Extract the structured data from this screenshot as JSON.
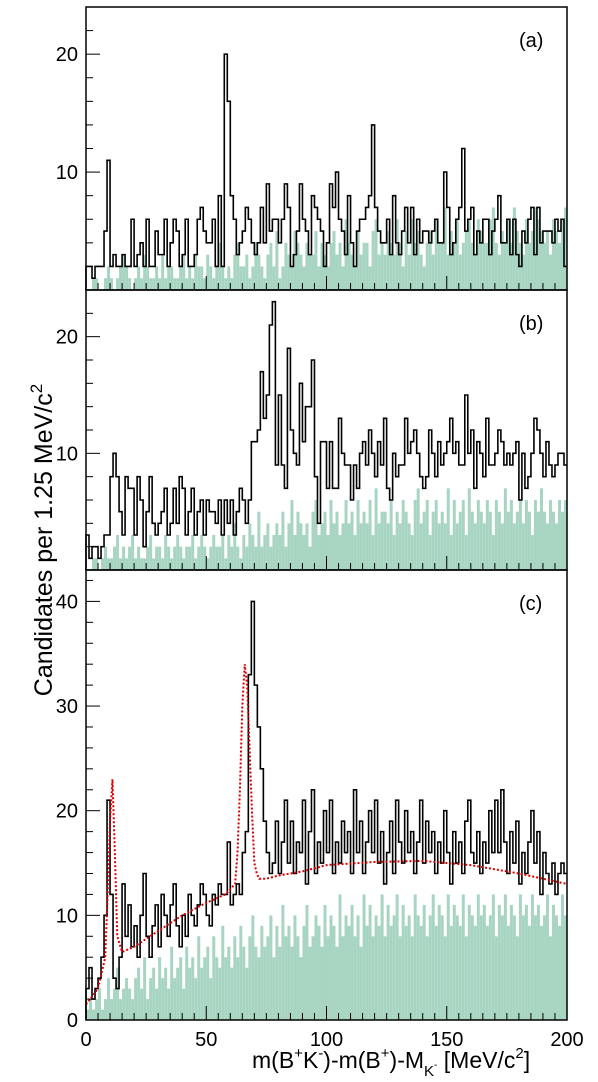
{
  "figure": {
    "ylabel": "Candidates per 1.25 MeV/c",
    "ylabel_sup": "2",
    "xlabel": "m(B",
    "xlabel_parts": [
      "m(B",
      "+",
      "K",
      "-",
      ")-m(B",
      "+",
      ")-M",
      "K",
      "-",
      " [MeV/c",
      "2",
      "]"
    ]
  },
  "colors": {
    "fill": "#a8d5c2",
    "line": "#000000",
    "fit": "#dd0000"
  },
  "chart_data": [
    {
      "type": "bar",
      "panel_label": "(a)",
      "xlim": [
        0,
        200
      ],
      "ylim": [
        0,
        24
      ],
      "yticks": [
        10,
        20
      ],
      "bin_width": 1.25,
      "description_series": [
        "data histogram (line)",
        "background histogram (filled)"
      ],
      "series": [
        {
          "values": [
            2,
            2,
            1,
            2,
            2,
            2,
            5,
            11,
            2,
            3,
            2,
            2,
            3,
            2,
            2,
            6,
            2,
            3,
            4,
            2,
            6,
            2,
            2,
            5,
            3,
            3,
            6,
            2,
            4,
            6,
            5,
            2,
            3,
            6,
            2,
            2,
            3,
            6,
            7,
            5,
            4,
            4,
            6,
            2,
            8,
            2,
            20,
            16,
            8,
            6,
            3,
            4,
            5,
            7,
            6,
            4,
            3,
            4,
            7,
            4,
            9,
            5,
            6,
            6,
            4,
            6,
            9,
            7,
            2,
            3,
            5,
            9,
            6,
            5,
            3,
            8,
            7,
            6,
            5,
            2,
            4,
            9,
            7,
            10,
            6,
            5,
            3,
            8,
            4,
            2,
            5,
            6,
            6,
            7,
            8,
            14,
            7,
            5,
            4,
            4,
            6,
            3,
            8,
            4,
            3,
            5,
            7,
            4,
            7,
            3,
            6,
            4,
            5,
            5,
            4,
            5,
            6,
            4,
            4,
            10,
            7,
            3,
            4,
            6,
            7,
            12,
            5,
            6,
            7,
            3,
            5,
            4,
            6,
            6,
            3,
            5,
            6,
            8,
            4,
            4,
            6,
            3,
            6,
            3,
            2,
            5,
            4,
            6,
            7,
            3,
            7,
            4,
            5,
            5,
            5,
            4,
            6,
            5,
            6,
            2
          ]
        },
        {
          "values": [
            0,
            0,
            1,
            1,
            0,
            0,
            1,
            2,
            1,
            0,
            1,
            2,
            3,
            2,
            1,
            0,
            1,
            2,
            1,
            3,
            2,
            1,
            1,
            2,
            1,
            3,
            1,
            2,
            2,
            1,
            1,
            2,
            3,
            1,
            2,
            1,
            3,
            2,
            2,
            1,
            3,
            2,
            1,
            2,
            4,
            2,
            1,
            2,
            1,
            3,
            4,
            2,
            2,
            3,
            1,
            2,
            4,
            3,
            2,
            1,
            3,
            4,
            2,
            5,
            1,
            2,
            4,
            3,
            2,
            5,
            4,
            3,
            2,
            4,
            3,
            3,
            5,
            2,
            4,
            3,
            2,
            4,
            5,
            3,
            4,
            2,
            6,
            4,
            3,
            2,
            5,
            3,
            4,
            4,
            2,
            5,
            6,
            3,
            4,
            3,
            5,
            4,
            3,
            6,
            4,
            2,
            5,
            3,
            6,
            4,
            5,
            3,
            2,
            4,
            5,
            3,
            6,
            4,
            4,
            7,
            3,
            5,
            4,
            6,
            3,
            4,
            5,
            6,
            4,
            3,
            6,
            5,
            4,
            4,
            6,
            7,
            4,
            3,
            5,
            4,
            6,
            4,
            7,
            5,
            4,
            3,
            6,
            4,
            5,
            7,
            6,
            5,
            4,
            5,
            3,
            6,
            5,
            4,
            6,
            7
          ]
        }
      ]
    },
    {
      "type": "bar",
      "panel_label": "(b)",
      "xlim": [
        0,
        200
      ],
      "ylim": [
        0,
        24
      ],
      "yticks": [
        10,
        20
      ],
      "bin_width": 1.25,
      "series": [
        {
          "values": [
            3,
            1,
            2,
            2,
            1,
            2,
            3,
            3,
            8,
            10,
            8,
            5,
            3,
            8,
            7,
            7,
            3,
            8,
            6,
            2,
            5,
            8,
            4,
            3,
            4,
            5,
            7,
            3,
            4,
            7,
            4,
            8,
            7,
            3,
            5,
            7,
            3,
            5,
            6,
            3,
            6,
            5,
            5,
            4,
            6,
            3,
            6,
            4,
            6,
            3,
            5,
            7,
            6,
            4,
            6,
            11,
            11,
            12,
            17,
            13,
            15,
            21,
            23,
            9,
            15,
            9,
            7,
            19,
            12,
            10,
            9,
            16,
            11,
            14,
            14,
            18,
            8,
            4,
            11,
            11,
            7,
            11,
            7,
            7,
            13,
            10,
            9,
            9,
            6,
            9,
            7,
            10,
            11,
            9,
            12,
            10,
            8,
            11,
            9,
            13,
            7,
            6,
            10,
            8,
            9,
            9,
            13,
            10,
            11,
            12,
            10,
            8,
            7,
            8,
            12,
            10,
            8,
            11,
            9,
            10,
            11,
            13,
            10,
            11,
            9,
            9,
            15,
            10,
            12,
            7,
            11,
            10,
            8,
            13,
            9,
            9,
            10,
            12,
            11,
            9,
            10,
            9,
            10,
            11,
            6,
            10,
            7,
            8,
            10,
            13,
            12,
            10,
            8,
            11,
            9,
            8,
            9,
            10,
            10,
            9
          ]
        },
        {
          "values": [
            0,
            0,
            1,
            1,
            0,
            1,
            2,
            1,
            1,
            2,
            3,
            1,
            2,
            1,
            2,
            3,
            1,
            2,
            1,
            1,
            2,
            3,
            1,
            2,
            2,
            1,
            3,
            2,
            1,
            2,
            3,
            2,
            1,
            2,
            2,
            3,
            1,
            2,
            3,
            2,
            1,
            2,
            3,
            2,
            2,
            3,
            1,
            3,
            2,
            4,
            2,
            1,
            3,
            2,
            4,
            3,
            2,
            5,
            2,
            3,
            4,
            2,
            3,
            4,
            3,
            5,
            2,
            4,
            6,
            3,
            5,
            4,
            3,
            4,
            2,
            5,
            6,
            3,
            4,
            5,
            3,
            6,
            4,
            5,
            3,
            4,
            6,
            4,
            5,
            3,
            6,
            4,
            5,
            4,
            6,
            3,
            7,
            4,
            5,
            5,
            4,
            6,
            3,
            5,
            4,
            6,
            5,
            4,
            3,
            6,
            7,
            4,
            5,
            6,
            3,
            5,
            6,
            4,
            5,
            4,
            7,
            3,
            6,
            4,
            5,
            6,
            3,
            7,
            5,
            4,
            6,
            5,
            4,
            6,
            5,
            3,
            6,
            5,
            4,
            7,
            5,
            6,
            4,
            5,
            6,
            4,
            6,
            5,
            3,
            6,
            5,
            7,
            5,
            4,
            6,
            5,
            4,
            6,
            5,
            6
          ]
        }
      ]
    },
    {
      "type": "bar",
      "panel_label": "(c)",
      "xlim": [
        0,
        200
      ],
      "ylim": [
        0,
        43
      ],
      "yticks": [
        0,
        10,
        20,
        30,
        40
      ],
      "xticks": [
        0,
        50,
        100,
        150,
        200
      ],
      "bin_width": 1.25,
      "series": [
        {
          "values": [
            3,
            5,
            2,
            3,
            4,
            6,
            10,
            21,
            12,
            4,
            3,
            6,
            13,
            8,
            11,
            7,
            9,
            6,
            10,
            14,
            8,
            6,
            9,
            11,
            7,
            12,
            10,
            8,
            11,
            13,
            9,
            7,
            10,
            8,
            12,
            10,
            9,
            11,
            13,
            12,
            10,
            9,
            12,
            11,
            13,
            12,
            12,
            17,
            11,
            12,
            13,
            12,
            16,
            18,
            33,
            40,
            32,
            28,
            24,
            19,
            16,
            14,
            15,
            19,
            14,
            17,
            21,
            15,
            19,
            14,
            17,
            16,
            21,
            13,
            18,
            22,
            14,
            17,
            15,
            20,
            16,
            21,
            14,
            17,
            15,
            19,
            16,
            18,
            14,
            22,
            16,
            19,
            14,
            17,
            20,
            16,
            21,
            15,
            18,
            13,
            16,
            19,
            14,
            21,
            17,
            15,
            20,
            16,
            18,
            14,
            17,
            21,
            15,
            19,
            16,
            18,
            14,
            17,
            15,
            20,
            16,
            13,
            18,
            15,
            17,
            14,
            19,
            21,
            16,
            15,
            18,
            14,
            17,
            15,
            20,
            16,
            21,
            16,
            22,
            17,
            14,
            18,
            15,
            19,
            13,
            16,
            14,
            17,
            20,
            15,
            18,
            12,
            16,
            14,
            13,
            15,
            12,
            14,
            15,
            14
          ]
        },
        {
          "values": [
            1,
            2,
            1,
            2,
            3,
            1,
            2,
            4,
            2,
            3,
            5,
            2,
            3,
            4,
            3,
            2,
            4,
            5,
            3,
            6,
            2,
            4,
            5,
            3,
            6,
            4,
            5,
            3,
            7,
            4,
            5,
            6,
            3,
            7,
            5,
            6,
            4,
            8,
            5,
            6,
            7,
            4,
            8,
            6,
            5,
            9,
            6,
            7,
            5,
            8,
            6,
            9,
            7,
            5,
            8,
            10,
            7,
            6,
            9,
            7,
            8,
            10,
            6,
            9,
            7,
            11,
            8,
            9,
            7,
            10,
            8,
            6,
            9,
            11,
            7,
            8,
            10,
            9,
            7,
            11,
            8,
            10,
            9,
            7,
            12,
            8,
            10,
            9,
            11,
            8,
            10,
            7,
            12,
            9,
            11,
            8,
            10,
            9,
            12,
            8,
            11,
            9,
            10,
            12,
            8,
            11,
            9,
            10,
            8,
            12,
            10,
            9,
            11,
            8,
            10,
            12,
            9,
            11,
            10,
            8,
            12,
            9,
            11,
            10,
            9,
            12,
            8,
            11,
            10,
            9,
            12,
            10,
            11,
            9,
            10,
            12,
            8,
            11,
            10,
            12,
            9,
            11,
            10,
            8,
            12,
            10,
            11,
            9,
            12,
            10,
            11,
            9,
            10,
            12,
            8,
            11,
            10,
            9,
            12,
            10
          ]
        },
        {
          "name": "fit",
          "type": "line",
          "x": [
            0,
            5,
            8,
            9,
            10,
            11,
            12,
            13,
            15,
            20,
            30,
            40,
            50,
            58,
            62,
            63,
            64,
            65,
            66,
            67,
            68,
            69,
            70,
            71,
            72,
            75,
            80,
            90,
            100,
            120,
            140,
            160,
            180,
            200
          ],
          "values": [
            1.5,
            3,
            6,
            12,
            19,
            23,
            16,
            8,
            6.5,
            7,
            8.5,
            10,
            11.2,
            12,
            13,
            16,
            22,
            30,
            34,
            32,
            26,
            20,
            15,
            14,
            13.5,
            13.5,
            13.8,
            14.2,
            14.8,
            15.1,
            15.2,
            14.8,
            14,
            13
          ]
        }
      ]
    }
  ]
}
